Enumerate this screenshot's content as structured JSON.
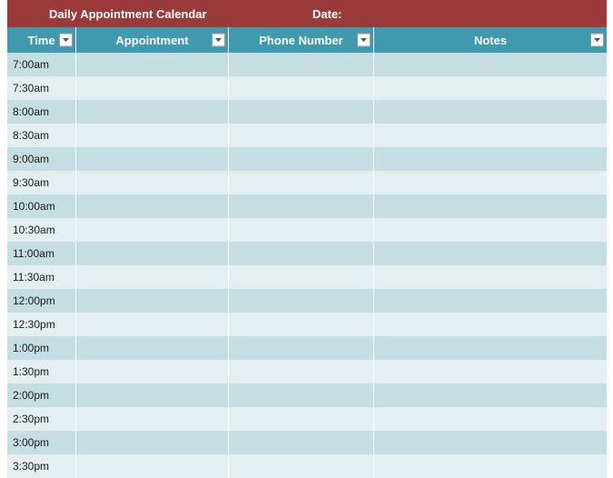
{
  "colors": {
    "header_bg": "#9b3a3a",
    "column_bg": "#3f9ab0",
    "row_even": "#c4dee2",
    "row_odd": "#e4eff1",
    "text_header": "#ffffff",
    "text_body": "#1a1a1a"
  },
  "header": {
    "title": "Daily Appointment Calendar",
    "date_label": "Date:"
  },
  "columns": [
    {
      "key": "time",
      "label": "Time"
    },
    {
      "key": "appointment",
      "label": "Appointment"
    },
    {
      "key": "phone",
      "label": "Phone Number"
    },
    {
      "key": "notes",
      "label": "Notes"
    }
  ],
  "rows": [
    {
      "time": "7:00am",
      "appointment": "",
      "phone": "",
      "notes": ""
    },
    {
      "time": "7:30am",
      "appointment": "",
      "phone": "",
      "notes": ""
    },
    {
      "time": "8:00am",
      "appointment": "",
      "phone": "",
      "notes": ""
    },
    {
      "time": "8:30am",
      "appointment": "",
      "phone": "",
      "notes": ""
    },
    {
      "time": "9:00am",
      "appointment": "",
      "phone": "",
      "notes": ""
    },
    {
      "time": "9:30am",
      "appointment": "",
      "phone": "",
      "notes": ""
    },
    {
      "time": "10:00am",
      "appointment": "",
      "phone": "",
      "notes": ""
    },
    {
      "time": "10:30am",
      "appointment": "",
      "phone": "",
      "notes": ""
    },
    {
      "time": "11:00am",
      "appointment": "",
      "phone": "",
      "notes": ""
    },
    {
      "time": "11:30am",
      "appointment": "",
      "phone": "",
      "notes": ""
    },
    {
      "time": "12:00pm",
      "appointment": "",
      "phone": "",
      "notes": ""
    },
    {
      "time": "12:30pm",
      "appointment": "",
      "phone": "",
      "notes": ""
    },
    {
      "time": "1:00pm",
      "appointment": "",
      "phone": "",
      "notes": ""
    },
    {
      "time": "1:30pm",
      "appointment": "",
      "phone": "",
      "notes": ""
    },
    {
      "time": "2:00pm",
      "appointment": "",
      "phone": "",
      "notes": ""
    },
    {
      "time": "2:30pm",
      "appointment": "",
      "phone": "",
      "notes": ""
    },
    {
      "time": "3:00pm",
      "appointment": "",
      "phone": "",
      "notes": ""
    },
    {
      "time": "3:30pm",
      "appointment": "",
      "phone": "",
      "notes": ""
    }
  ]
}
